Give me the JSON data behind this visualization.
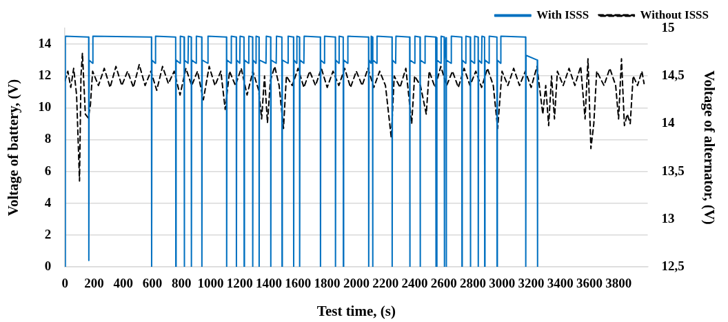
{
  "chart_data": {
    "type": "line",
    "xlabel": "Test time, (s)",
    "ylabel": "Voltage of battery, (V)",
    "y2label": "Voltage of alternator, (V)",
    "xlim": [
      0,
      4000
    ],
    "xticks": [
      0,
      200,
      400,
      600,
      800,
      1000,
      1200,
      1400,
      1600,
      1800,
      2000,
      2200,
      2400,
      2600,
      2800,
      3000,
      3200,
      3400,
      3600,
      3800
    ],
    "ylim": [
      0,
      15
    ],
    "yticks": [
      0,
      2,
      4,
      6,
      8,
      10,
      12,
      14
    ],
    "y2lim": [
      12.5,
      15
    ],
    "y2ticks": [
      {
        "value": 12.5,
        "label": "12,5"
      },
      13,
      {
        "value": 13.5,
        "label": "13,5"
      },
      14,
      {
        "value": 14.5,
        "label": "14,5"
      },
      15
    ],
    "grid": "y",
    "legend": "top right",
    "marker": "none",
    "series": [
      {
        "name": "With ISSS",
        "color": "#0070c0",
        "line_style": "solid",
        "x": [
          0,
          3,
          163,
          164,
          166,
          190,
          192,
          594,
          595,
          597,
          620,
          622,
          760,
          761,
          763,
          790,
          792,
          818,
          819,
          821,
          845,
          847,
          867,
          868,
          870,
          900,
          902,
          939,
          940,
          942,
          980,
          982,
          1109,
          1110,
          1112,
          1140,
          1142,
          1176,
          1177,
          1179,
          1200,
          1202,
          1229,
          1230,
          1232,
          1260,
          1262,
          1288,
          1289,
          1291,
          1310,
          1312,
          1332,
          1333,
          1335,
          1380,
          1382,
          1412,
          1413,
          1415,
          1450,
          1452,
          1489,
          1490,
          1492,
          1530,
          1532,
          1569,
          1570,
          1572,
          1590,
          1592,
          1610,
          1611,
          1613,
          1640,
          1642,
          1753,
          1754,
          1756,
          1780,
          1782,
          1856,
          1857,
          1859,
          1880,
          1882,
          1910,
          1911,
          1913,
          1940,
          1942,
          2084,
          2085,
          2087,
          2100,
          2102,
          2111,
          2112,
          2114,
          2140,
          2142,
          2245,
          2246,
          2248,
          2270,
          2272,
          2366,
          2367,
          2369,
          2400,
          2402,
          2437,
          2438,
          2440,
          2470,
          2472,
          2545,
          2546,
          2548,
          2551,
          2552,
          2554,
          2580,
          2582,
          2603,
          2604,
          2606,
          2616,
          2617,
          2619,
          2650,
          2652,
          2724,
          2725,
          2727,
          2750,
          2752,
          2782,
          2783,
          2785,
          2810,
          2812,
          2836,
          2837,
          2839,
          2860,
          2862,
          2880,
          2881,
          2883,
          2910,
          2912,
          2965,
          2966,
          2968,
          2990,
          2992,
          3162,
          3163,
          3165,
          3242,
          3244
        ],
        "values": [
          0,
          14.5,
          14.45,
          0.4,
          13,
          12.8,
          14.5,
          14.45,
          0,
          13,
          12.8,
          14.5,
          14.45,
          0,
          13,
          12.8,
          14.5,
          14.45,
          0,
          13,
          12.8,
          14.5,
          14.45,
          0,
          13,
          12.8,
          14.5,
          14.45,
          0,
          13,
          12.8,
          14.5,
          14.45,
          0,
          13,
          12.8,
          14.5,
          14.45,
          0,
          13,
          12.8,
          14.5,
          14.45,
          0,
          13,
          12.8,
          14.5,
          14.45,
          0,
          13,
          12.8,
          14.5,
          14.45,
          0,
          13,
          12.8,
          14.5,
          14.45,
          0,
          13,
          12.8,
          14.5,
          14.45,
          0,
          13,
          12.8,
          14.5,
          14.45,
          0,
          13,
          12.8,
          14.5,
          14.45,
          0,
          13,
          12.8,
          14.5,
          14.45,
          0,
          13,
          12.8,
          14.5,
          14.45,
          0,
          13,
          12.8,
          14.5,
          14.45,
          0,
          13,
          12.8,
          14.5,
          14.45,
          0,
          13,
          12.8,
          14.5,
          14.45,
          0,
          13,
          12.8,
          14.5,
          14.45,
          0,
          13,
          12.8,
          14.5,
          14.45,
          0,
          13,
          12.8,
          14.5,
          14.45,
          0,
          13,
          12.8,
          14.5,
          14.45,
          0,
          13,
          14.4,
          0,
          13,
          12.8,
          14.5,
          14.45,
          0,
          13,
          14.4,
          0,
          13,
          12.8,
          14.5,
          14.45,
          0,
          13,
          12.8,
          14.5,
          14.45,
          0,
          13,
          12.8,
          14.5,
          14.45,
          0,
          13,
          12.8,
          14.5,
          14.45,
          0,
          13,
          12.8,
          14.5,
          14.45,
          0,
          13,
          12.8,
          14.5,
          14.45,
          0,
          13.3,
          13,
          0
        ]
      },
      {
        "name": "Without ISSS",
        "color": "#000000",
        "line_style": "dashed",
        "axis": "y2",
        "x": [
          0,
          20,
          40,
          60,
          80,
          100,
          110,
          120,
          140,
          160,
          175,
          190,
          230,
          270,
          310,
          350,
          390,
          430,
          470,
          510,
          550,
          590,
          630,
          670,
          710,
          750,
          790,
          830,
          870,
          910,
          950,
          990,
          1030,
          1070,
          1100,
          1130,
          1170,
          1210,
          1250,
          1290,
          1330,
          1350,
          1370,
          1390,
          1410,
          1440,
          1470,
          1500,
          1520,
          1560,
          1600,
          1640,
          1680,
          1720,
          1760,
          1800,
          1840,
          1880,
          1920,
          1960,
          2000,
          2040,
          2080,
          2120,
          2160,
          2200,
          2240,
          2260,
          2300,
          2340,
          2380,
          2400,
          2440,
          2480,
          2500,
          2540,
          2580,
          2620,
          2660,
          2700,
          2740,
          2780,
          2820,
          2860,
          2900,
          2940,
          2970,
          3000,
          3040,
          3080,
          3120,
          3160,
          3200,
          3240,
          3280,
          3300,
          3320,
          3340,
          3360,
          3380,
          3420,
          3460,
          3500,
          3540,
          3570,
          3590,
          3610,
          3630,
          3650,
          3700,
          3740,
          3780,
          3800,
          3820,
          3840,
          3860,
          3880,
          3900,
          3930,
          3960,
          3975
        ],
        "values": [
          14.45,
          14.55,
          14.38,
          14.58,
          14.3,
          13.4,
          14.5,
          14.74,
          14.1,
          14.06,
          14.2,
          14.55,
          14.4,
          14.58,
          14.38,
          14.6,
          14.4,
          14.55,
          14.38,
          14.62,
          14.4,
          14.55,
          14.35,
          14.6,
          14.42,
          14.55,
          14.3,
          14.58,
          14.4,
          14.55,
          14.25,
          14.6,
          14.4,
          14.55,
          14.15,
          14.55,
          14.4,
          14.58,
          14.3,
          14.55,
          14.35,
          14.05,
          14.5,
          14.01,
          14.45,
          14.6,
          14.4,
          13.95,
          14.5,
          14.4,
          14.58,
          14.38,
          14.55,
          14.4,
          14.58,
          14.38,
          14.55,
          14.4,
          14.58,
          14.38,
          14.55,
          14.4,
          14.58,
          14.38,
          14.55,
          14.4,
          13.85,
          14.5,
          14.38,
          14.58,
          14,
          14.5,
          14.4,
          14.1,
          14.55,
          14.38,
          14.6,
          14.4,
          14.55,
          14.38,
          14.58,
          14.4,
          14.55,
          14.38,
          14.58,
          14.4,
          13.95,
          14.55,
          14.4,
          14.58,
          14.4,
          14.55,
          14.38,
          14.6,
          14.1,
          14.4,
          13.98,
          14.5,
          14.05,
          14.55,
          14.4,
          14.58,
          14.4,
          14.6,
          14.05,
          14.68,
          13.74,
          14,
          14.55,
          14.4,
          14.58,
          14.4,
          14.05,
          14.68,
          13.98,
          14.1,
          14,
          14.5,
          14.4,
          14.55,
          14.42
        ]
      }
    ]
  }
}
